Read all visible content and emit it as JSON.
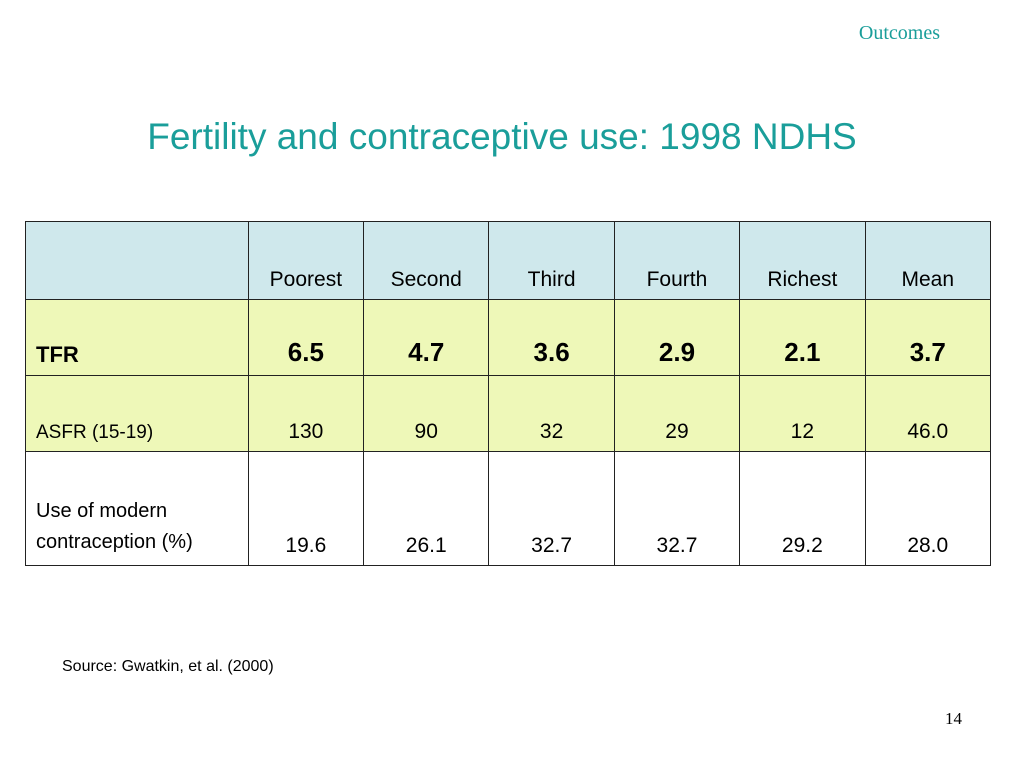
{
  "section_label": "Outcomes",
  "title": "Fertility and contraceptive use: 1998 NDHS",
  "table": {
    "columns": [
      "",
      "Poorest",
      "Second",
      "Third",
      "Fourth",
      "Richest",
      "Mean"
    ],
    "rows": [
      {
        "label": "TFR",
        "values": [
          "6.5",
          "4.7",
          "3.6",
          "2.9",
          "2.1",
          "3.7"
        ]
      },
      {
        "label": "ASFR (15-19)",
        "values": [
          "130",
          "90",
          "32",
          "29",
          "12",
          "46.0"
        ]
      },
      {
        "label_line1": "Use of modern",
        "label_line2": "contraception (%)",
        "values": [
          "19.6",
          "26.1",
          "32.7",
          "32.7",
          "29.2",
          "28.0"
        ]
      }
    ],
    "colors": {
      "header_bg": "#cfe8ec",
      "highlight_bg": "#eef8b8",
      "title_color": "#1a9e9a"
    }
  },
  "source": "Source: Gwatkin, et al. (2000)",
  "page_number": "14"
}
